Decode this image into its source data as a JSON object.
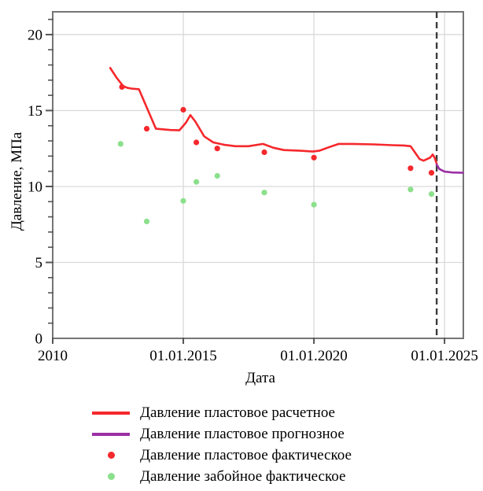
{
  "colors": {
    "calculated_line": "#f5282c",
    "forecast_line": "#9b2fa5",
    "actual_reservoir_dot": "#f5282c",
    "actual_bottomhole_dot": "#8ce08c",
    "gridline": "#d9d9d9",
    "plot_border": "#757575",
    "forecast_divider": "#3c3c3c",
    "text": "#000000"
  },
  "chart_data": {
    "type": "line",
    "title": "",
    "xlabel": "Дата",
    "ylabel": "Давление, МПа",
    "x_unit": "decimal_year",
    "x_range": [
      2010,
      2025.72
    ],
    "y_range": [
      0,
      21.5
    ],
    "x_ticks": [
      {
        "value": 2010,
        "label": "2010"
      },
      {
        "value": 2015,
        "label": "01.01.2015"
      },
      {
        "value": 2020,
        "label": "01.01.2020"
      },
      {
        "value": 2025,
        "label": "01.01.2025"
      }
    ],
    "y_ticks": [
      0,
      5,
      10,
      15,
      20
    ],
    "y_minor_step": 1,
    "grid": true,
    "legend_position": "bottom",
    "forecast_divider_x": 2024.7,
    "series": [
      {
        "name": "Давление пластовое расчетное",
        "type": "line",
        "color": "#f5282c",
        "points": [
          [
            2012.2,
            17.8
          ],
          [
            2012.45,
            17.15
          ],
          [
            2012.7,
            16.6
          ],
          [
            2012.85,
            16.5
          ],
          [
            2013.0,
            16.45
          ],
          [
            2013.3,
            16.4
          ],
          [
            2013.95,
            13.8
          ],
          [
            2014.5,
            13.72
          ],
          [
            2014.85,
            13.7
          ],
          [
            2015.1,
            14.2
          ],
          [
            2015.27,
            14.7
          ],
          [
            2015.45,
            14.3
          ],
          [
            2015.8,
            13.3
          ],
          [
            2016.15,
            12.9
          ],
          [
            2016.55,
            12.75
          ],
          [
            2017.0,
            12.65
          ],
          [
            2017.5,
            12.65
          ],
          [
            2018.05,
            12.8
          ],
          [
            2018.45,
            12.55
          ],
          [
            2018.85,
            12.4
          ],
          [
            2019.5,
            12.35
          ],
          [
            2019.95,
            12.3
          ],
          [
            2020.2,
            12.35
          ],
          [
            2020.6,
            12.6
          ],
          [
            2020.95,
            12.8
          ],
          [
            2021.5,
            12.8
          ],
          [
            2022.3,
            12.77
          ],
          [
            2023.0,
            12.72
          ],
          [
            2023.45,
            12.7
          ],
          [
            2023.7,
            12.65
          ],
          [
            2024.05,
            11.8
          ],
          [
            2024.2,
            11.7
          ],
          [
            2024.45,
            11.9
          ],
          [
            2024.55,
            12.1
          ],
          [
            2024.62,
            11.9
          ],
          [
            2024.7,
            11.5
          ]
        ]
      },
      {
        "name": "Давление пластовое прогнозное",
        "type": "line",
        "color": "#9b2fa5",
        "points": [
          [
            2024.7,
            11.45
          ],
          [
            2024.8,
            11.15
          ],
          [
            2025.0,
            10.98
          ],
          [
            2025.3,
            10.92
          ],
          [
            2025.7,
            10.9
          ]
        ]
      },
      {
        "name": "Давление пластовое фактическое",
        "type": "scatter",
        "color": "#f5282c",
        "points": [
          [
            2012.65,
            16.55
          ],
          [
            2013.6,
            13.8
          ],
          [
            2015.0,
            15.05
          ],
          [
            2015.5,
            12.9
          ],
          [
            2016.3,
            12.5
          ],
          [
            2018.1,
            12.25
          ],
          [
            2020.0,
            11.9
          ],
          [
            2023.7,
            11.2
          ],
          [
            2024.5,
            10.9
          ]
        ]
      },
      {
        "name": "Давление забойное фактическое",
        "type": "scatter",
        "color": "#8ce08c",
        "points": [
          [
            2012.6,
            12.8
          ],
          [
            2013.6,
            7.7
          ],
          [
            2015.0,
            9.05
          ],
          [
            2015.5,
            10.3
          ],
          [
            2016.3,
            10.7
          ],
          [
            2018.1,
            9.6
          ],
          [
            2020.0,
            8.8
          ],
          [
            2023.7,
            9.8
          ],
          [
            2024.5,
            9.5
          ]
        ]
      }
    ]
  },
  "axes": {
    "x_title": "Дата",
    "y_title": "Давление, МПа"
  },
  "legend": {
    "items": [
      {
        "label": "Давление пластовое расчетное",
        "marker": "line",
        "color": "#f5282c"
      },
      {
        "label": "Давление пластовое прогнозное",
        "marker": "line",
        "color": "#9b2fa5"
      },
      {
        "label": "Давление пластовое фактическое",
        "marker": "dot",
        "color": "#f5282c"
      },
      {
        "label": "Давление забойное фактическое",
        "marker": "dot",
        "color": "#8ce08c"
      }
    ]
  }
}
